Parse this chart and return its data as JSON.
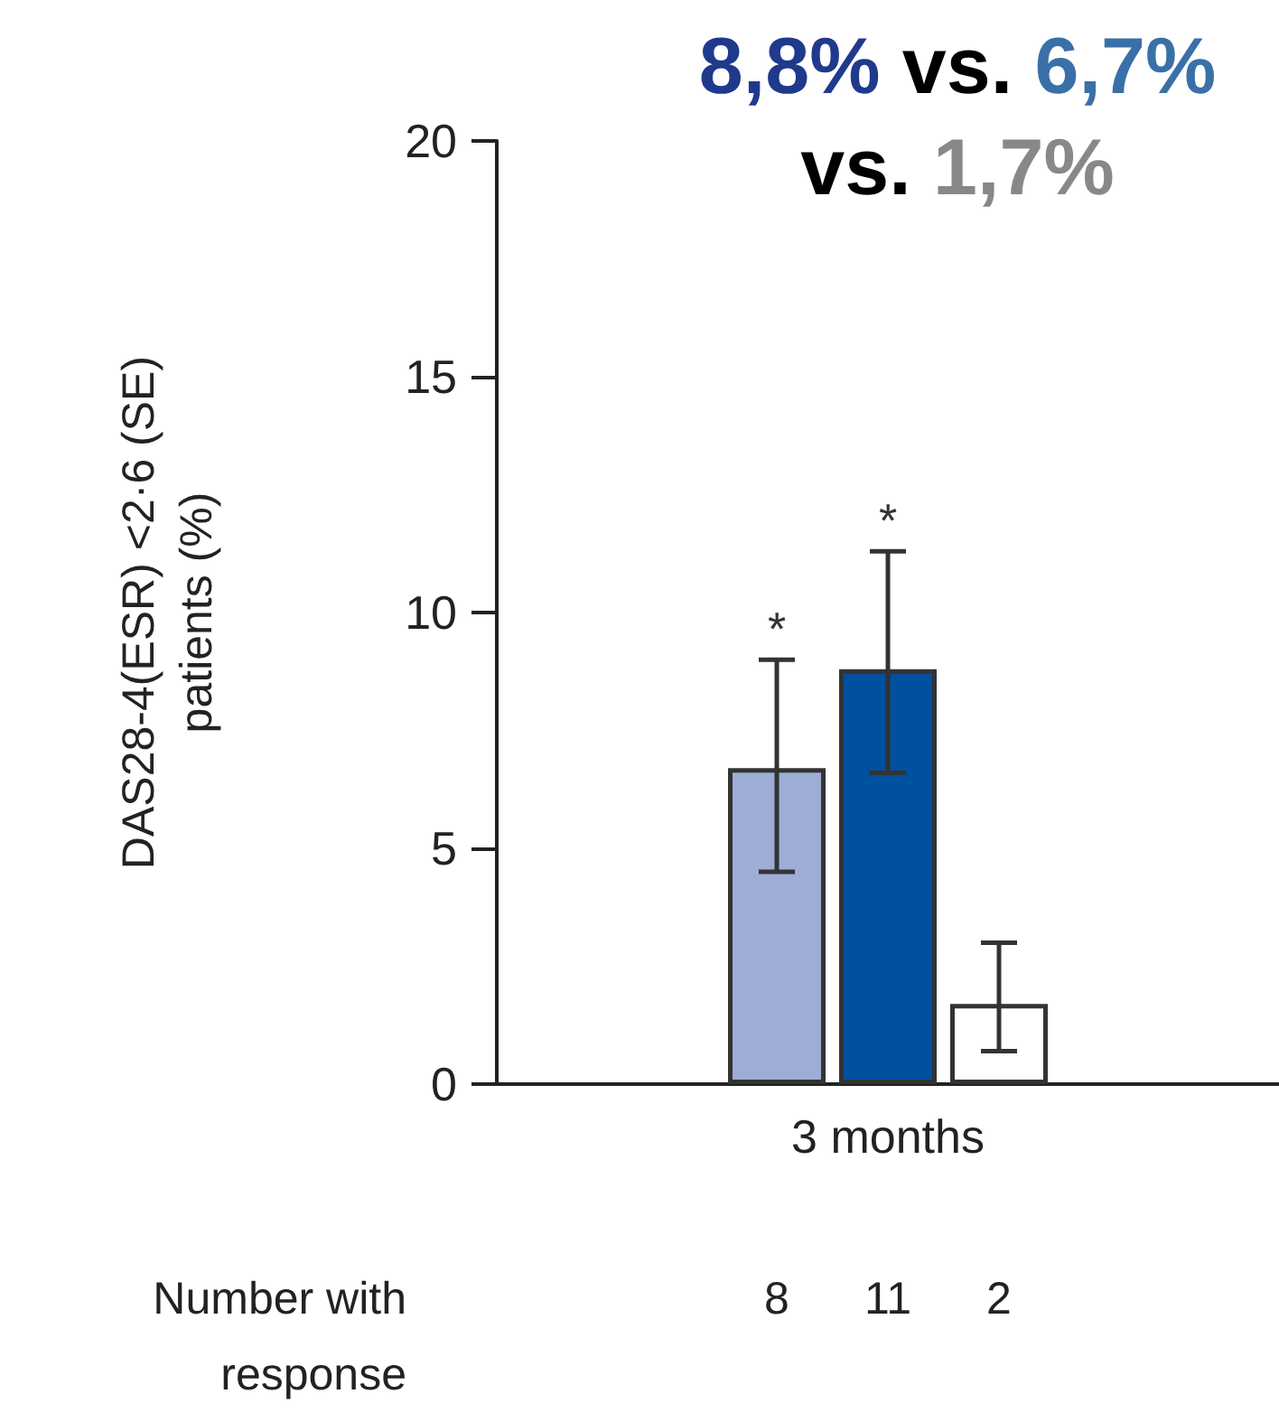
{
  "chart_data": {
    "type": "bar",
    "title": "8,8% vs. 6,7% vs. 1,7%",
    "ylabel": "DAS28-4(ESR) <2·6 (SE)\npatients (%)",
    "categories": [
      "3 months"
    ],
    "series": [
      {
        "color": "#9dadd6",
        "values": [
          6.7
        ],
        "errors": [
          [
            4.5,
            9.0
          ]
        ]
      },
      {
        "color": "#0050a0",
        "values": [
          8.8
        ],
        "errors": [
          [
            6.6,
            11.3
          ]
        ]
      },
      {
        "color": "#ffffff",
        "values": [
          1.7
        ],
        "errors": [
          [
            0.7,
            3.0
          ]
        ]
      }
    ],
    "ylim": [
      0,
      20
    ],
    "yticks": [
      0,
      5,
      10,
      15,
      20
    ],
    "grid": false,
    "annotations": [
      "Number with response",
      "8",
      "11",
      "2",
      {
        "text": "*",
        "x": "3 months",
        "y": 9.0
      },
      {
        "text": "*",
        "x": "3 months",
        "y": 11.3
      }
    ]
  }
}
